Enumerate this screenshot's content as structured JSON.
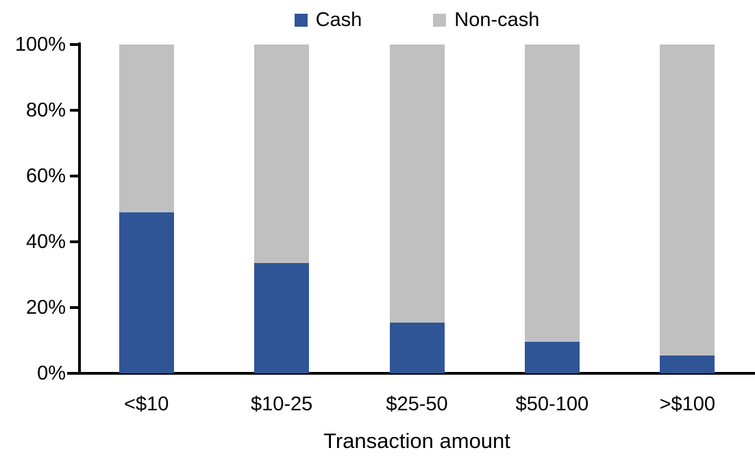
{
  "chart_data": {
    "type": "bar",
    "variant": "stacked-100-percent-column",
    "title": "",
    "xlabel": "Transaction amount",
    "ylabel": "",
    "categories": [
      "<$10",
      "$10-25",
      "$25-50",
      "$50-100",
      ">$100"
    ],
    "series": [
      {
        "name": "Cash",
        "color": "#2F5597",
        "values": [
          49,
          33.5,
          15.5,
          9.5,
          5.5
        ]
      },
      {
        "name": "Non-cash",
        "color": "#C0C0C0",
        "values": [
          51,
          66.5,
          84.5,
          90.5,
          94.5
        ]
      }
    ],
    "ylim": [
      0,
      100
    ],
    "y_tick_labels": [
      "0%",
      "20%",
      "40%",
      "60%",
      "80%",
      "100%"
    ],
    "grid": "off",
    "legend_position": "top-center",
    "axis_color": "#000000",
    "background_color": "#FFFFFF"
  }
}
